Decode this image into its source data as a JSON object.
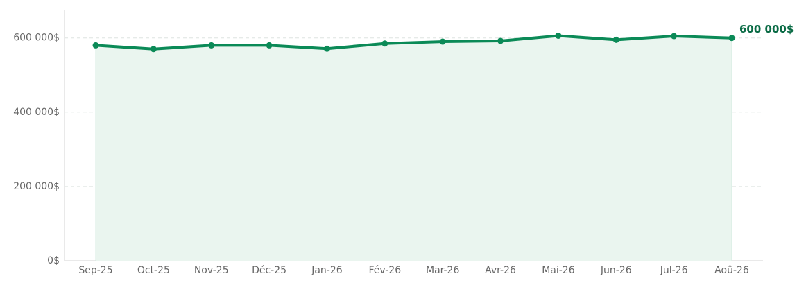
{
  "chart_data": {
    "type": "line",
    "categories": [
      "Sep-25",
      "Oct-25",
      "Nov-25",
      "Déc-25",
      "Jan-26",
      "Fév-26",
      "Mar-26",
      "Avr-26",
      "Mai-26",
      "Jun-26",
      "Jul-26",
      "Aoû-26"
    ],
    "values": [
      580000,
      570000,
      580000,
      580000,
      571000,
      585000,
      590000,
      592000,
      606000,
      595000,
      605000,
      600000
    ],
    "value_labels": [
      null,
      null,
      null,
      null,
      null,
      null,
      null,
      null,
      null,
      null,
      null,
      "600 000$"
    ],
    "color": "#0b8a57",
    "area_color": "#eaf5ef",
    "label_color": "#0a6b45",
    "ylim": [
      0,
      676000
    ],
    "yticks": [
      {
        "value": 0,
        "label": "0$"
      },
      {
        "value": 200000,
        "label": "200 000$"
      },
      {
        "value": 400000,
        "label": "400 000$"
      },
      {
        "value": 600000,
        "label": "600 000$"
      }
    ],
    "grid": true
  }
}
